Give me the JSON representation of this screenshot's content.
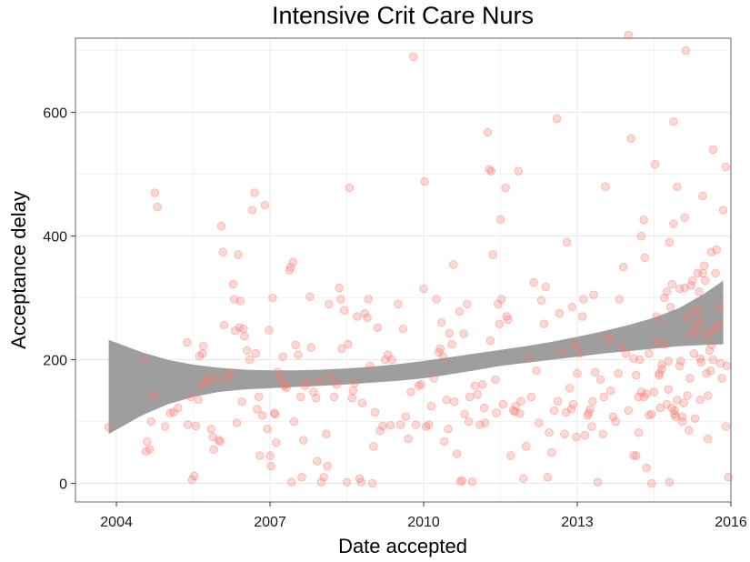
{
  "chart_data": {
    "type": "scatter",
    "title": "Intensive Crit Care Nurs",
    "xlabel": "Date accepted",
    "ylabel": "Acceptance delay",
    "x_unit": "year",
    "xlim": [
      2003.2,
      2016.0
    ],
    "ylim": [
      -30,
      720
    ],
    "x_ticks": [
      2004,
      2007,
      2010,
      2013,
      2016
    ],
    "y_ticks": [
      0,
      200,
      400,
      600
    ],
    "grid": true,
    "legend": "none",
    "colors": {
      "points_fill": "#f8766d",
      "points_stroke": "#f8766d",
      "ribbon": "#999999",
      "smooth_line": "#4d4d4d",
      "panel_border": "#7f7f7f",
      "grid": "#ebebeb"
    },
    "points": [
      [
        2003.85,
        91
      ],
      [
        2004.55,
        200
      ],
      [
        2004.58,
        52
      ],
      [
        2004.6,
        68
      ],
      [
        2004.65,
        55
      ],
      [
        2004.68,
        100
      ],
      [
        2004.72,
        143
      ],
      [
        2004.75,
        470
      ],
      [
        2004.8,
        447
      ],
      [
        2004.95,
        92
      ],
      [
        2005.05,
        114
      ],
      [
        2005.12,
        115
      ],
      [
        2005.2,
        122
      ],
      [
        2005.38,
        228
      ],
      [
        2005.4,
        95
      ],
      [
        2005.45,
        140
      ],
      [
        2005.48,
        6
      ],
      [
        2005.52,
        12
      ],
      [
        2005.55,
        93
      ],
      [
        2005.6,
        135
      ],
      [
        2005.62,
        206
      ],
      [
        2005.65,
        160
      ],
      [
        2005.68,
        210
      ],
      [
        2005.7,
        222
      ],
      [
        2005.75,
        165
      ],
      [
        2005.78,
        170
      ],
      [
        2005.85,
        88
      ],
      [
        2005.88,
        75
      ],
      [
        2005.9,
        55
      ],
      [
        2005.95,
        168
      ],
      [
        2006.0,
        70
      ],
      [
        2006.03,
        68
      ],
      [
        2006.05,
        416
      ],
      [
        2006.08,
        374
      ],
      [
        2006.1,
        256
      ],
      [
        2006.15,
        172
      ],
      [
        2006.2,
        178
      ],
      [
        2006.28,
        322
      ],
      [
        2006.3,
        298
      ],
      [
        2006.32,
        247
      ],
      [
        2006.35,
        98
      ],
      [
        2006.38,
        370
      ],
      [
        2006.4,
        252
      ],
      [
        2006.42,
        295
      ],
      [
        2006.45,
        132
      ],
      [
        2006.48,
        250
      ],
      [
        2006.5,
        238
      ],
      [
        2006.55,
        215
      ],
      [
        2006.6,
        200
      ],
      [
        2006.65,
        442
      ],
      [
        2006.7,
        470
      ],
      [
        2006.72,
        210
      ],
      [
        2006.75,
        120
      ],
      [
        2006.78,
        140
      ],
      [
        2006.8,
        45
      ],
      [
        2006.85,
        110
      ],
      [
        2006.9,
        450
      ],
      [
        2006.95,
        88
      ],
      [
        2006.98,
        248
      ],
      [
        2007.0,
        45
      ],
      [
        2007.02,
        28
      ],
      [
        2007.05,
        300
      ],
      [
        2007.08,
        114
      ],
      [
        2007.1,
        112
      ],
      [
        2007.12,
        66
      ],
      [
        2007.15,
        180
      ],
      [
        2007.2,
        172
      ],
      [
        2007.25,
        205
      ],
      [
        2007.28,
        158
      ],
      [
        2007.3,
        160
      ],
      [
        2007.32,
        155
      ],
      [
        2007.38,
        345
      ],
      [
        2007.4,
        350
      ],
      [
        2007.42,
        2
      ],
      [
        2007.45,
        358
      ],
      [
        2007.47,
        100
      ],
      [
        2007.5,
        224
      ],
      [
        2007.55,
        208
      ],
      [
        2007.6,
        140
      ],
      [
        2007.62,
        10
      ],
      [
        2007.65,
        70
      ],
      [
        2007.68,
        158
      ],
      [
        2007.7,
        165
      ],
      [
        2007.78,
        302
      ],
      [
        2007.8,
        220
      ],
      [
        2007.85,
        148
      ],
      [
        2007.9,
        138
      ],
      [
        2007.92,
        36
      ],
      [
        2007.95,
        168
      ],
      [
        2008.0,
        2
      ],
      [
        2008.05,
        10
      ],
      [
        2008.1,
        80
      ],
      [
        2008.12,
        28
      ],
      [
        2008.15,
        290
      ],
      [
        2008.2,
        172
      ],
      [
        2008.25,
        140
      ],
      [
        2008.3,
        160
      ],
      [
        2008.35,
        316
      ],
      [
        2008.38,
        298
      ],
      [
        2008.4,
        218
      ],
      [
        2008.45,
        280
      ],
      [
        2008.5,
        2
      ],
      [
        2008.52,
        225
      ],
      [
        2008.55,
        478
      ],
      [
        2008.6,
        138
      ],
      [
        2008.62,
        150
      ],
      [
        2008.65,
        162
      ],
      [
        2008.7,
        270
      ],
      [
        2008.75,
        8
      ],
      [
        2008.78,
        2
      ],
      [
        2008.8,
        130
      ],
      [
        2008.85,
        275
      ],
      [
        2008.9,
        268
      ],
      [
        2008.92,
        298
      ],
      [
        2008.95,
        190
      ],
      [
        2009.0,
        0
      ],
      [
        2009.02,
        60
      ],
      [
        2009.05,
        115
      ],
      [
        2009.1,
        252
      ],
      [
        2009.15,
        85
      ],
      [
        2009.2,
        93
      ],
      [
        2009.25,
        200
      ],
      [
        2009.3,
        208
      ],
      [
        2009.35,
        94
      ],
      [
        2009.38,
        200
      ],
      [
        2009.5,
        290
      ],
      [
        2009.55,
        95
      ],
      [
        2009.6,
        250
      ],
      [
        2009.65,
        108
      ],
      [
        2009.7,
        72
      ],
      [
        2009.75,
        148
      ],
      [
        2009.8,
        690
      ],
      [
        2009.85,
        95
      ],
      [
        2009.9,
        158
      ],
      [
        2009.95,
        160
      ],
      [
        2010.0,
        315
      ],
      [
        2010.02,
        488
      ],
      [
        2010.05,
        92
      ],
      [
        2010.1,
        95
      ],
      [
        2010.15,
        125
      ],
      [
        2010.2,
        170
      ],
      [
        2010.25,
        298
      ],
      [
        2010.3,
        212
      ],
      [
        2010.32,
        218
      ],
      [
        2010.35,
        260
      ],
      [
        2010.38,
        205
      ],
      [
        2010.4,
        68
      ],
      [
        2010.45,
        135
      ],
      [
        2010.48,
        88
      ],
      [
        2010.5,
        243
      ],
      [
        2010.55,
        225
      ],
      [
        2010.58,
        354
      ],
      [
        2010.6,
        132
      ],
      [
        2010.65,
        48
      ],
      [
        2010.7,
        278
      ],
      [
        2010.72,
        3
      ],
      [
        2010.75,
        5
      ],
      [
        2010.78,
        242
      ],
      [
        2010.8,
        112
      ],
      [
        2010.85,
        290
      ],
      [
        2010.88,
        100
      ],
      [
        2010.9,
        140
      ],
      [
        2010.95,
        3
      ],
      [
        2011.0,
        158
      ],
      [
        2011.05,
        144
      ],
      [
        2011.1,
        95
      ],
      [
        2011.15,
        160
      ],
      [
        2011.18,
        122
      ],
      [
        2011.2,
        98
      ],
      [
        2011.25,
        568
      ],
      [
        2011.28,
        508
      ],
      [
        2011.3,
        231
      ],
      [
        2011.32,
        505
      ],
      [
        2011.35,
        370
      ],
      [
        2011.4,
        168
      ],
      [
        2011.42,
        114
      ],
      [
        2011.45,
        290
      ],
      [
        2011.48,
        258
      ],
      [
        2011.5,
        427
      ],
      [
        2011.52,
        298
      ],
      [
        2011.55,
        128
      ],
      [
        2011.6,
        478
      ],
      [
        2011.62,
        270
      ],
      [
        2011.65,
        265
      ],
      [
        2011.7,
        45
      ],
      [
        2011.75,
        118
      ],
      [
        2011.78,
        116
      ],
      [
        2011.8,
        125
      ],
      [
        2011.85,
        505
      ],
      [
        2011.88,
        113
      ],
      [
        2011.9,
        133
      ],
      [
        2011.95,
        8
      ],
      [
        2012.0,
        60
      ],
      [
        2012.05,
        205
      ],
      [
        2012.1,
        140
      ],
      [
        2012.15,
        325
      ],
      [
        2012.2,
        182
      ],
      [
        2012.25,
        98
      ],
      [
        2012.3,
        296
      ],
      [
        2012.35,
        258
      ],
      [
        2012.38,
        318
      ],
      [
        2012.42,
        10
      ],
      [
        2012.45,
        82
      ],
      [
        2012.5,
        50
      ],
      [
        2012.55,
        118
      ],
      [
        2012.6,
        590
      ],
      [
        2012.62,
        133
      ],
      [
        2012.65,
        275
      ],
      [
        2012.7,
        215
      ],
      [
        2012.75,
        80
      ],
      [
        2012.78,
        115
      ],
      [
        2012.8,
        390
      ],
      [
        2012.85,
        154
      ],
      [
        2012.88,
        120
      ],
      [
        2012.9,
        285
      ],
      [
        2012.92,
        128
      ],
      [
        2012.95,
        225
      ],
      [
        2012.98,
        75
      ],
      [
        2013.0,
        178
      ],
      [
        2013.05,
        210
      ],
      [
        2013.1,
        270
      ],
      [
        2013.12,
        298
      ],
      [
        2013.15,
        78
      ],
      [
        2013.2,
        110
      ],
      [
        2013.22,
        114
      ],
      [
        2013.25,
        120
      ],
      [
        2013.28,
        92
      ],
      [
        2013.3,
        133
      ],
      [
        2013.32,
        305
      ],
      [
        2013.35,
        180
      ],
      [
        2013.4,
        2
      ],
      [
        2013.45,
        168
      ],
      [
        2013.5,
        80
      ],
      [
        2013.52,
        140
      ],
      [
        2013.55,
        480
      ],
      [
        2013.6,
        238
      ],
      [
        2013.62,
        232
      ],
      [
        2013.65,
        150
      ],
      [
        2013.7,
        108
      ],
      [
        2013.75,
        100
      ],
      [
        2013.8,
        178
      ],
      [
        2013.82,
        298
      ],
      [
        2013.85,
        222
      ],
      [
        2013.9,
        350
      ],
      [
        2013.95,
        210
      ],
      [
        2014.0,
        118
      ],
      [
        2014.05,
        558
      ],
      [
        2014.1,
        202
      ],
      [
        2014.15,
        45
      ],
      [
        2014.2,
        82
      ],
      [
        2014.25,
        400
      ],
      [
        2014.3,
        140
      ],
      [
        2014.35,
        145
      ],
      [
        2014.4,
        210
      ],
      [
        2014.45,
        112
      ],
      [
        2014.5,
        148
      ],
      [
        2014.52,
        516
      ],
      [
        2014.55,
        270
      ],
      [
        2014.6,
        175
      ],
      [
        2014.62,
        122
      ],
      [
        2014.65,
        185
      ],
      [
        2014.7,
        300
      ],
      [
        2014.75,
        310
      ],
      [
        2014.78,
        152
      ],
      [
        2014.8,
        2
      ],
      [
        2014.85,
        322
      ],
      [
        2014.88,
        420
      ],
      [
        2014.9,
        112
      ],
      [
        2014.95,
        135
      ],
      [
        2015.0,
        190
      ],
      [
        2015.05,
        100
      ],
      [
        2015.1,
        316
      ],
      [
        2015.15,
        142
      ],
      [
        2015.2,
        170
      ],
      [
        2015.25,
        328
      ],
      [
        2015.3,
        105
      ],
      [
        2015.35,
        340
      ],
      [
        2015.38,
        310
      ],
      [
        2015.4,
        135
      ],
      [
        2015.45,
        465
      ],
      [
        2015.5,
        328
      ],
      [
        2015.55,
        72
      ],
      [
        2015.6,
        182
      ],
      [
        2015.62,
        224
      ],
      [
        2015.65,
        200
      ],
      [
        2015.7,
        340
      ],
      [
        2015.72,
        378
      ],
      [
        2015.75,
        286
      ],
      [
        2015.8,
        194
      ],
      [
        2015.85,
        442
      ],
      [
        2015.9,
        512
      ],
      [
        2015.92,
        190
      ],
      [
        2015.95,
        10
      ],
      [
        2014.0,
        725
      ],
      [
        2014.1,
        45
      ],
      [
        2014.15,
        175
      ],
      [
        2014.2,
        140
      ],
      [
        2014.22,
        200
      ],
      [
        2014.25,
        148
      ],
      [
        2014.3,
        426
      ],
      [
        2014.32,
        365
      ],
      [
        2014.35,
        25
      ],
      [
        2014.4,
        110
      ],
      [
        2014.45,
        0
      ],
      [
        2014.55,
        230
      ],
      [
        2014.6,
        178
      ],
      [
        2014.65,
        192
      ],
      [
        2014.7,
        225
      ],
      [
        2014.75,
        128
      ],
      [
        2014.78,
        198
      ],
      [
        2014.8,
        390
      ],
      [
        2014.82,
        285
      ],
      [
        2014.85,
        122
      ],
      [
        2014.88,
        585
      ],
      [
        2014.9,
        118
      ],
      [
        2014.92,
        108
      ],
      [
        2014.95,
        480
      ],
      [
        2015.0,
        315
      ],
      [
        2015.02,
        198
      ],
      [
        2015.05,
        108
      ],
      [
        2015.08,
        130
      ],
      [
        2015.1,
        430
      ],
      [
        2015.12,
        700
      ],
      [
        2015.15,
        268
      ],
      [
        2015.18,
        86
      ],
      [
        2015.2,
        242
      ],
      [
        2015.22,
        320
      ],
      [
        2015.25,
        280
      ],
      [
        2015.28,
        210
      ],
      [
        2015.3,
        246
      ],
      [
        2015.32,
        256
      ],
      [
        2015.35,
        280
      ],
      [
        2015.38,
        262
      ],
      [
        2015.4,
        202
      ],
      [
        2015.42,
        196
      ],
      [
        2015.45,
        340
      ],
      [
        2015.48,
        352
      ],
      [
        2015.5,
        240
      ],
      [
        2015.52,
        178
      ],
      [
        2015.55,
        142
      ],
      [
        2015.58,
        215
      ],
      [
        2015.6,
        246
      ],
      [
        2015.62,
        374
      ],
      [
        2015.65,
        540
      ],
      [
        2015.7,
        250
      ],
      [
        2015.75,
        258
      ],
      [
        2015.82,
        170
      ],
      [
        2015.9,
        92
      ]
    ],
    "smooth": {
      "x": [
        2003.85,
        2004.5,
        2005.0,
        2005.5,
        2006.0,
        2006.5,
        2007.0,
        2007.5,
        2008.0,
        2008.5,
        2009.0,
        2009.5,
        2010.0,
        2010.5,
        2011.0,
        2011.5,
        2012.0,
        2012.5,
        2013.0,
        2013.5,
        2014.0,
        2014.5,
        2015.0,
        2015.5,
        2015.85
      ],
      "lower": [
        80,
        110,
        128,
        140,
        148,
        152,
        154,
        156,
        158,
        160,
        163,
        166,
        170,
        176,
        183,
        190,
        195,
        200,
        205,
        210,
        214,
        218,
        222,
        224,
        225
      ],
      "upper": [
        232,
        212,
        200,
        192,
        187,
        184,
        183,
        183,
        184,
        186,
        189,
        193,
        198,
        204,
        210,
        216,
        222,
        229,
        237,
        246,
        256,
        268,
        284,
        308,
        328
      ]
    }
  }
}
